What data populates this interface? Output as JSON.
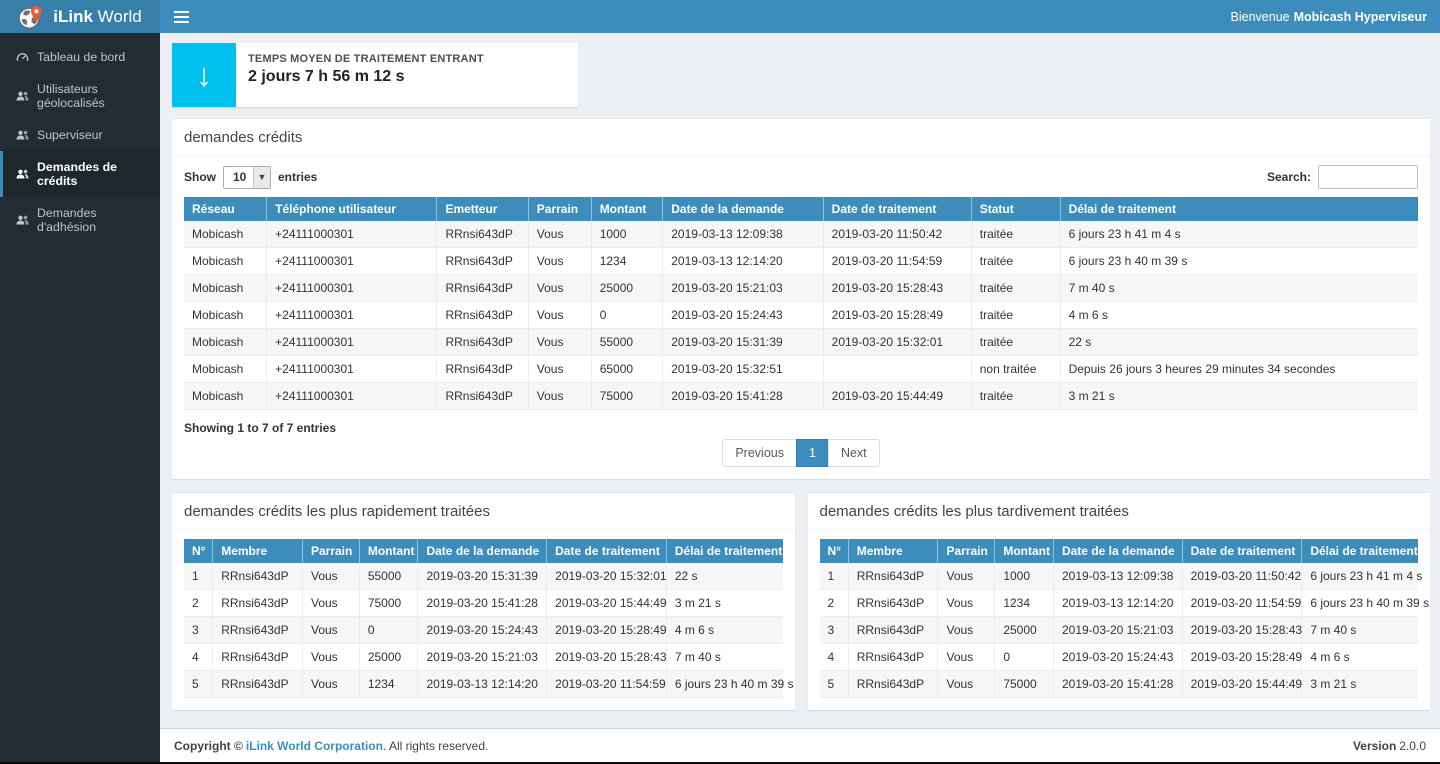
{
  "brand": {
    "name_bold": "iLink",
    "name_light": "World"
  },
  "navbar": {
    "welcome_prefix": "Bienvenue",
    "welcome_user": "Mobicash Hyperviseur"
  },
  "sidebar": {
    "items": [
      {
        "label": "Tableau de bord"
      },
      {
        "label": "Utilisateurs géolocalisés"
      },
      {
        "label": "Superviseur"
      },
      {
        "label": "Demandes de crédits"
      },
      {
        "label": "Demandes d'adhésion"
      }
    ]
  },
  "stat_card": {
    "label": "TEMPS MOYEN DE TRAITEMENT ENTRANT",
    "value": "2 jours 7 h 56 m 12 s",
    "icon": "arrow-down-icon",
    "icon_bg": "#00c0ef"
  },
  "main_table": {
    "title": "demandes crédits",
    "show_label": "Show",
    "entries_label": "entries",
    "page_length": "10",
    "search_label": "Search:",
    "search_value": "",
    "columns": [
      "Réseau",
      "Téléphone utilisateur",
      "Emetteur",
      "Parrain",
      "Montant",
      "Date de la demande",
      "Date de traitement",
      "Statut",
      "Délai de traitement"
    ],
    "rows": [
      [
        "Mobicash",
        "+24111000301",
        "RRnsi643dP",
        "Vous",
        "1000",
        "2019-03-13 12:09:38",
        "2019-03-20 11:50:42",
        "traitée",
        "6 jours 23 h 41 m 4 s"
      ],
      [
        "Mobicash",
        "+24111000301",
        "RRnsi643dP",
        "Vous",
        "1234",
        "2019-03-13 12:14:20",
        "2019-03-20 11:54:59",
        "traitée",
        "6 jours 23 h 40 m 39 s"
      ],
      [
        "Mobicash",
        "+24111000301",
        "RRnsi643dP",
        "Vous",
        "25000",
        "2019-03-20 15:21:03",
        "2019-03-20 15:28:43",
        "traitée",
        "7 m 40 s"
      ],
      [
        "Mobicash",
        "+24111000301",
        "RRnsi643dP",
        "Vous",
        "0",
        "2019-03-20 15:24:43",
        "2019-03-20 15:28:49",
        "traitée",
        "4 m 6 s"
      ],
      [
        "Mobicash",
        "+24111000301",
        "RRnsi643dP",
        "Vous",
        "55000",
        "2019-03-20 15:31:39",
        "2019-03-20 15:32:01",
        "traitée",
        "22 s"
      ],
      [
        "Mobicash",
        "+24111000301",
        "RRnsi643dP",
        "Vous",
        "65000",
        "2019-03-20 15:32:51",
        "",
        "non traitée",
        "Depuis 26 jours 3 heures 29 minutes 34 secondes"
      ],
      [
        "Mobicash",
        "+24111000301",
        "RRnsi643dP",
        "Vous",
        "75000",
        "2019-03-20 15:41:28",
        "2019-03-20 15:44:49",
        "traitée",
        "3 m 21 s"
      ]
    ],
    "info": "Showing 1 to 7 of 7 entries",
    "pagination": {
      "previous": "Previous",
      "current": "1",
      "next": "Next"
    }
  },
  "fast_table": {
    "title": "demandes crédits les plus rapidement traitées",
    "columns": [
      "N°",
      "Membre",
      "Parrain",
      "Montant",
      "Date de la demande",
      "Date de traitement",
      "Délai de traitement"
    ],
    "rows": [
      [
        "1",
        "RRnsi643dP",
        "Vous",
        "55000",
        "2019-03-20 15:31:39",
        "2019-03-20 15:32:01",
        "22 s"
      ],
      [
        "2",
        "RRnsi643dP",
        "Vous",
        "75000",
        "2019-03-20 15:41:28",
        "2019-03-20 15:44:49",
        "3 m 21 s"
      ],
      [
        "3",
        "RRnsi643dP",
        "Vous",
        "0",
        "2019-03-20 15:24:43",
        "2019-03-20 15:28:49",
        "4 m 6 s"
      ],
      [
        "4",
        "RRnsi643dP",
        "Vous",
        "25000",
        "2019-03-20 15:21:03",
        "2019-03-20 15:28:43",
        "7 m 40 s"
      ],
      [
        "5",
        "RRnsi643dP",
        "Vous",
        "1234",
        "2019-03-13 12:14:20",
        "2019-03-20 11:54:59",
        "6 jours 23 h 40 m 39 s"
      ]
    ]
  },
  "late_table": {
    "title": "demandes crédits les plus tardivement traitées",
    "columns": [
      "N°",
      "Membre",
      "Parrain",
      "Montant",
      "Date de la demande",
      "Date de traitement",
      "Délai de traitement"
    ],
    "rows": [
      [
        "1",
        "RRnsi643dP",
        "Vous",
        "1000",
        "2019-03-13 12:09:38",
        "2019-03-20 11:50:42",
        "6 jours 23 h 41 m 4 s"
      ],
      [
        "2",
        "RRnsi643dP",
        "Vous",
        "1234",
        "2019-03-13 12:14:20",
        "2019-03-20 11:54:59",
        "6 jours 23 h 40 m 39 s"
      ],
      [
        "3",
        "RRnsi643dP",
        "Vous",
        "25000",
        "2019-03-20 15:21:03",
        "2019-03-20 15:28:43",
        "7 m 40 s"
      ],
      [
        "4",
        "RRnsi643dP",
        "Vous",
        "0",
        "2019-03-20 15:24:43",
        "2019-03-20 15:28:49",
        "4 m 6 s"
      ],
      [
        "5",
        "RRnsi643dP",
        "Vous",
        "75000",
        "2019-03-20 15:41:28",
        "2019-03-20 15:44:49",
        "3 m 21 s"
      ]
    ]
  },
  "footer": {
    "copyright_bold": "Copyright ©",
    "company_link": "iLink World Corporation",
    "rights": ". All rights reserved.",
    "version_label": "Version",
    "version_value": "2.0.0"
  },
  "colors": {
    "accent": "#3c8dbc",
    "logo_bg": "#367fa9",
    "sidebar_bg": "#222d32",
    "sidebar_active_bg": "#1e282c",
    "sidebar_text": "#b8c7ce",
    "content_bg": "#ecf0f5",
    "stat_icon_aqua": "#00c0ef",
    "table_header": "#3c8dbc",
    "row_stripe": "#f6f6f6",
    "pin_orange": "#e85b2b"
  }
}
